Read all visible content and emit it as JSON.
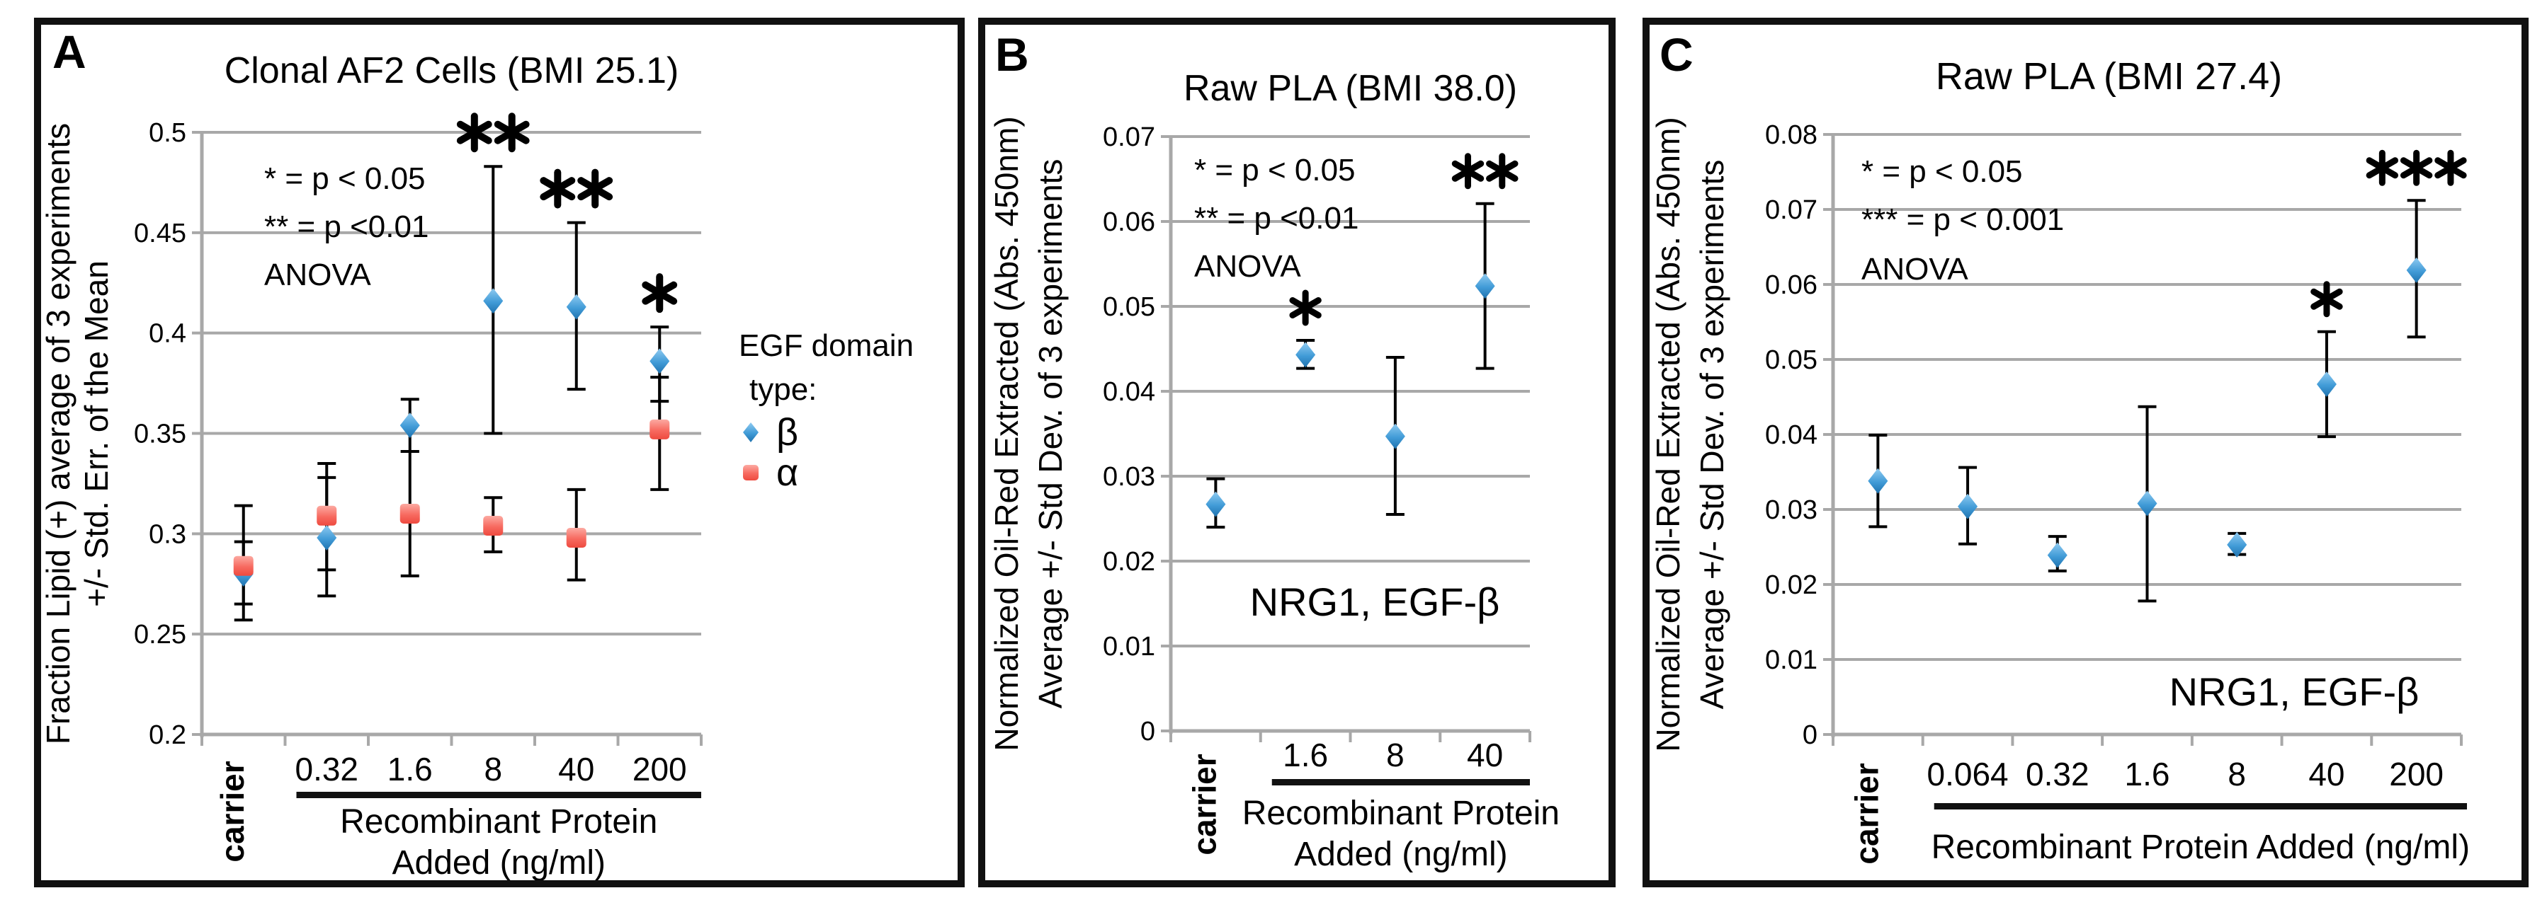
{
  "colors": {
    "grid": "#a8a8a8",
    "error_bar": "#000000",
    "beta_marker": "#419bd7",
    "alpha_marker": "#f76a60",
    "border": "#111111"
  },
  "chart_data": [
    {
      "type": "scatter",
      "panel_label": "A",
      "title": "Clonal AF2 Cells (BMI 25.1)",
      "annotations": [
        "* = p < 0.05",
        "** = p <0.01",
        "ANOVA"
      ],
      "x_categories": [
        "carrier",
        "0.32",
        "1.6",
        "8",
        "40",
        "200"
      ],
      "xlabel_lines": [
        "Recombinant Protein",
        "Added (ng/ml)"
      ],
      "ylabel_lines": [
        "Fraction Lipid (+) average of 3 experiments",
        "+/- Std. Err. of the Mean"
      ],
      "ylim": [
        0.2,
        0.5
      ],
      "ytick_step": 0.05,
      "ytick_labels": [
        "0.5",
        "0.45",
        "0.4",
        "0.35",
        "0.3",
        "0.25",
        "0.2"
      ],
      "grid": true,
      "legend": {
        "title_lines": [
          "EGF domain",
          "type:"
        ],
        "position": "right",
        "entries": [
          {
            "label": "β",
            "marker": "diamond",
            "color": "#419bd7"
          },
          {
            "label": "α",
            "marker": "square",
            "color": "#f76a60"
          }
        ]
      },
      "series": [
        {
          "name": "β",
          "marker": "diamond",
          "color": "#419bd7",
          "color_light": "#90cbf1",
          "color_dark": "#1f72ae",
          "values": [
            0.28,
            0.298,
            0.354,
            0.416,
            0.413,
            0.386
          ],
          "err_lo": [
            0.265,
            0.269,
            0.341,
            0.35,
            0.372,
            0.366
          ],
          "err_hi": [
            0.296,
            0.328,
            0.367,
            0.483,
            0.455,
            0.403
          ],
          "sig": [
            "",
            "",
            "",
            "**",
            "**",
            "*"
          ]
        },
        {
          "name": "α",
          "marker": "square",
          "color": "#f76a60",
          "color_light": "#fcaaa2",
          "color_dark": "#ee4a3f",
          "values": [
            0.284,
            0.309,
            0.31,
            0.304,
            0.298,
            0.352
          ],
          "err_lo": [
            0.257,
            0.282,
            0.279,
            0.291,
            0.277,
            0.322
          ],
          "err_hi": [
            0.314,
            0.335,
            0.341,
            0.318,
            0.322,
            0.378
          ],
          "sig": [
            "",
            "",
            "",
            "",
            "",
            ""
          ]
        }
      ]
    },
    {
      "type": "scatter",
      "panel_label": "B",
      "title": "Raw PLA  (BMI 38.0)",
      "annotations": [
        "* = p < 0.05",
        "** = p <0.01",
        "ANOVA"
      ],
      "inplot_label": "NRG1, EGF-β",
      "x_categories": [
        "carrier",
        "1.6",
        "8",
        "40"
      ],
      "xlabel_lines": [
        "Recombinant Protein",
        "Added (ng/ml)"
      ],
      "ylabel_lines": [
        "Normalized Oil-Red Extracted (Abs. 450nm)",
        "Average +/- Std Dev. of 3 experiments"
      ],
      "ylim": [
        0,
        0.07
      ],
      "ytick_step": 0.01,
      "ytick_labels": [
        "0.07",
        "0.06",
        "0.05",
        "0.04",
        "0.03",
        "0.02",
        "0.01",
        "0"
      ],
      "grid": true,
      "series": [
        {
          "name": "β",
          "marker": "diamond",
          "color": "#419bd7",
          "color_light": "#90cbf1",
          "color_dark": "#1f72ae",
          "values": [
            0.0267,
            0.0443,
            0.0347,
            0.0524
          ],
          "err_lo": [
            0.024,
            0.0427,
            0.0255,
            0.0427
          ],
          "err_hi": [
            0.0297,
            0.046,
            0.044,
            0.0621
          ],
          "sig": [
            "",
            "*",
            "",
            "**"
          ]
        }
      ]
    },
    {
      "type": "scatter",
      "panel_label": "C",
      "title": "Raw PLA (BMI 27.4)",
      "annotations": [
        "* = p < 0.05",
        "*** = p < 0.001",
        "ANOVA"
      ],
      "inplot_label": "NRG1, EGF-β",
      "x_categories": [
        "carrier",
        "0.064",
        "0.32",
        "1.6",
        "8",
        "40",
        "200"
      ],
      "xlabel_lines": [
        "Recombinant Protein Added (ng/ml)"
      ],
      "ylabel_lines": [
        "Normalized Oil-Red Extracted (Abs. 450nm)",
        "Average +/- Std Dev. of 3 experiments"
      ],
      "ylim": [
        0,
        0.08
      ],
      "ytick_step": 0.01,
      "ytick_labels": [
        "0.08",
        "0.07",
        "0.06",
        "0.05",
        "0.04",
        "0.03",
        "0.02",
        "0.01",
        "0"
      ],
      "grid": true,
      "series": [
        {
          "name": "β",
          "marker": "diamond",
          "color": "#419bd7",
          "color_light": "#90cbf1",
          "color_dark": "#1f72ae",
          "values": [
            0.0338,
            0.0304,
            0.0239,
            0.0308,
            0.0253,
            0.0467,
            0.0619
          ],
          "err_lo": [
            0.0277,
            0.0254,
            0.0218,
            0.0178,
            0.024,
            0.0397,
            0.053
          ],
          "err_hi": [
            0.0399,
            0.0356,
            0.0264,
            0.0437,
            0.0268,
            0.0537,
            0.0712
          ],
          "sig": [
            "",
            "",
            "",
            "",
            "",
            "*",
            "***"
          ]
        }
      ]
    }
  ]
}
